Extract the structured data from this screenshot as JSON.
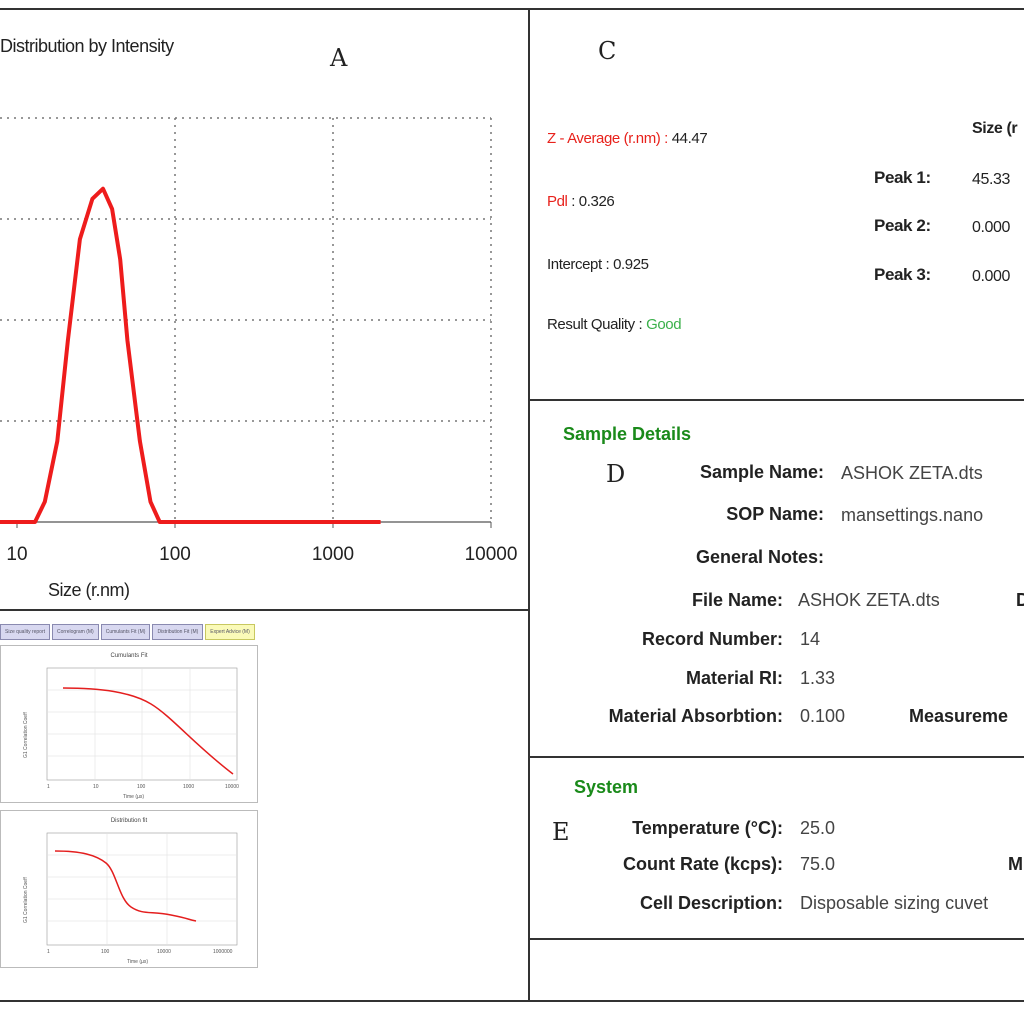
{
  "panels": {
    "a": "A",
    "c": "C",
    "d": "D",
    "e": "E"
  },
  "panel_a": {
    "title": "Distribution by Intensity",
    "xlabel": "Size (r.nm)"
  },
  "chart_data": {
    "type": "line",
    "title": "Distribution by Intensity",
    "xlabel": "Size (r.nm)",
    "ylabel": "",
    "xscale": "log",
    "xlim": [
      10,
      10000
    ],
    "x_ticks": [
      "10",
      "100",
      "1000",
      "10000"
    ],
    "grid": true,
    "series": [
      {
        "color": "#ee1c1c",
        "x": [
          3,
          13,
          15,
          18,
          21,
          25,
          30,
          35,
          40,
          45,
          50,
          60,
          70,
          80,
          2000
        ],
        "y": [
          0,
          0,
          1,
          4,
          9,
          14,
          16,
          16.5,
          15.5,
          13,
          9,
          4,
          1,
          0,
          0
        ]
      }
    ]
  },
  "panel_b": {
    "tabs": [
      {
        "label": "Size quality report",
        "active": false
      },
      {
        "label": "Correlogram (M)",
        "active": false
      },
      {
        "label": "Cumulants Fit (M)",
        "active": false
      },
      {
        "label": "Distribution Fit (M)",
        "active": false
      },
      {
        "label": "Expert Advice (M)",
        "active": true
      }
    ],
    "mini_charts": [
      {
        "title": "Cumulants Fit",
        "ylabel": "G1 Correlation Coeff",
        "xlabel": "Time (µs)",
        "ticks": [
          "1",
          "10",
          "100",
          "1000",
          "10000"
        ]
      },
      {
        "title": "Distribution fit",
        "ylabel": "G1 Correlation Coeff",
        "xlabel": "Time (µs)",
        "ticks": [
          "1",
          "100",
          "10000",
          "1000000"
        ]
      }
    ]
  },
  "panel_c": {
    "z_average_label": "Z - Average (r.nm) :",
    "z_average_value": "44.47",
    "pdi_label": "Pdl",
    "pdi_value": ": 0.326",
    "intercept": "Intercept : 0.925",
    "quality_label": "Result Quality :",
    "quality_value": "Good",
    "size_header": "Size (r",
    "peaks": [
      {
        "label": "Peak 1:",
        "size": "45.33"
      },
      {
        "label": "Peak 2:",
        "size": "0.000"
      },
      {
        "label": "Peak 3:",
        "size": "0.000"
      }
    ],
    "colors": {
      "red": "#e8221c",
      "green": "#3ab04a"
    }
  },
  "sample_details": {
    "title": "Sample Details",
    "sample_name_label": "Sample Name:",
    "sample_name": "ASHOK ZETA.dts",
    "sop_label": "SOP Name:",
    "sop_name": "mansettings.nano",
    "notes_label": "General Notes:",
    "file_name_label": "File Name:",
    "file_name": "ASHOK ZETA.dts",
    "file_name_right": "D",
    "record_label": "Record Number:",
    "record_value": "14",
    "ri_label": "Material RI:",
    "ri_value": "1.33",
    "absorption_label": "Material Absorbtion:",
    "absorption_value": "0.100",
    "measurement_label": "Measureme",
    "title_color": "#1a8a1a"
  },
  "system": {
    "title": "System",
    "temperature_label": "Temperature (°C):",
    "temperature_value": "25.0",
    "count_rate_label": "Count Rate (kcps):",
    "count_rate_value": "75.0",
    "count_rate_right": "M",
    "cell_label": "Cell Description:",
    "cell_value": "Disposable sizing cuvet"
  }
}
